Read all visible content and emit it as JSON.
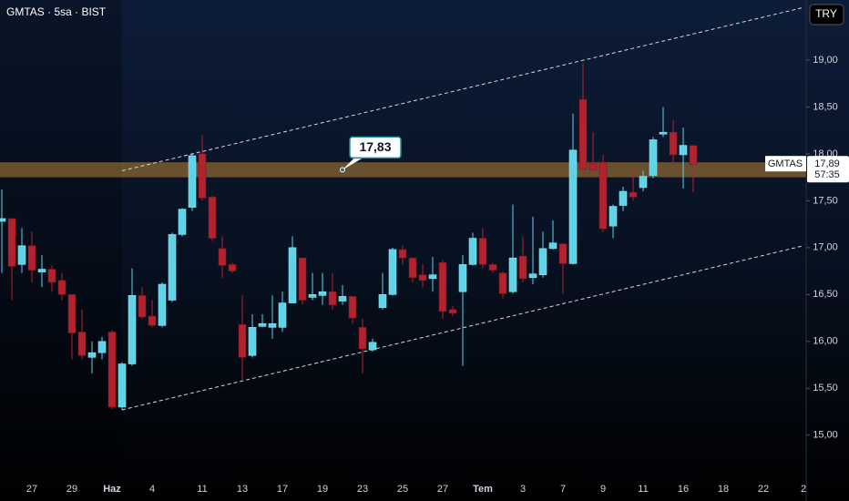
{
  "chart_data": {
    "type": "candlestick",
    "title": "GMTAS · 5sa · BIST",
    "currency": "TRY",
    "symbol": "GMTAS",
    "categories": [
      null,
      null,
      null,
      "27",
      null,
      null,
      null,
      "29",
      null,
      null,
      null,
      "Haz",
      null,
      null,
      null,
      "4",
      null,
      null,
      null,
      null,
      "11",
      null,
      null,
      null,
      "13",
      null,
      null,
      null,
      "17",
      null,
      null,
      null,
      "19",
      null,
      null,
      null,
      "23",
      null,
      null,
      null,
      "25",
      null,
      null,
      null,
      "27",
      null,
      null,
      null,
      "Tem",
      null,
      null,
      null,
      "3",
      null,
      null,
      null,
      "7",
      null,
      null,
      null,
      "9",
      null,
      null,
      null,
      "11",
      null,
      null,
      null,
      "16",
      null,
      null,
      null,
      "18",
      null,
      null,
      null,
      "22",
      null,
      null,
      null,
      "2"
    ],
    "open": [
      17.28,
      17.31,
      16.82,
      17.02,
      16.74,
      16.77,
      16.65,
      16.5,
      16.1,
      15.83,
      15.88,
      16.1,
      15.3,
      15.76,
      16.49,
      16.27,
      16.17,
      16.44,
      17.14,
      17.43,
      18.0,
      17.54,
      16.99,
      16.82,
      16.18,
      15.85,
      16.16,
      16.15,
      16.15,
      16.41,
      16.89,
      16.47,
      16.49,
      16.53,
      16.43,
      16.48,
      16.15,
      15.91,
      16.36,
      16.5,
      16.98,
      16.89,
      16.71,
      16.67,
      16.84,
      16.34,
      16.53,
      16.82,
      17.1,
      16.82,
      16.73,
      16.53,
      16.91,
      16.68,
      16.71,
      16.99,
      17.04,
      16.83,
      18.58,
      17.9,
      17.91,
      17.23,
      17.45,
      17.59,
      17.64,
      17.77,
      18.21,
      18.23,
      17.99,
      18.09,
      null,
      null,
      null,
      null,
      null,
      null,
      null,
      null,
      null,
      null,
      null
    ],
    "high": [
      17.62,
      17.31,
      17.21,
      17.17,
      16.92,
      16.81,
      16.73,
      16.5,
      16.34,
      16.0,
      16.05,
      16.12,
      15.78,
      16.78,
      16.58,
      16.44,
      16.63,
      17.16,
      17.42,
      18.01,
      18.2,
      17.55,
      17.12,
      16.84,
      16.49,
      16.29,
      16.29,
      16.49,
      16.53,
      17.12,
      16.89,
      16.73,
      16.73,
      16.73,
      16.6,
      16.48,
      16.24,
      16.03,
      16.73,
      17.0,
      17.02,
      16.89,
      16.82,
      16.9,
      16.87,
      16.38,
      16.92,
      17.16,
      17.21,
      16.84,
      16.75,
      17.46,
      17.12,
      17.33,
      17.17,
      17.29,
      17.05,
      18.43,
      18.97,
      18.23,
      17.99,
      17.46,
      17.65,
      17.84,
      17.82,
      18.18,
      18.5,
      18.36,
      18.28,
      18.09,
      null,
      null,
      null,
      null,
      null,
      null,
      null,
      null,
      null,
      null,
      null
    ],
    "low": [
      16.73,
      16.44,
      16.73,
      16.63,
      16.58,
      16.53,
      16.44,
      15.81,
      15.81,
      15.66,
      15.81,
      15.28,
      15.27,
      15.74,
      16.24,
      16.15,
      16.15,
      16.42,
      17.12,
      17.39,
      17.5,
      17.07,
      16.68,
      16.73,
      15.58,
      15.83,
      16.15,
      16.03,
      16.1,
      16.41,
      16.39,
      16.44,
      16.39,
      16.34,
      16.39,
      16.19,
      15.66,
      15.89,
      16.34,
      16.49,
      16.82,
      16.63,
      16.58,
      16.53,
      16.24,
      16.27,
      15.74,
      16.81,
      16.78,
      16.73,
      16.46,
      16.51,
      16.63,
      16.61,
      16.68,
      16.98,
      16.51,
      16.82,
      17.8,
      17.8,
      17.17,
      17.1,
      17.39,
      17.5,
      17.6,
      17.74,
      18.18,
      17.89,
      17.63,
      17.59,
      null,
      null,
      null,
      null,
      null,
      null,
      null,
      null,
      null,
      null,
      null
    ],
    "close": [
      17.31,
      16.8,
      17.02,
      16.76,
      16.77,
      16.63,
      16.5,
      16.09,
      15.85,
      15.88,
      16.0,
      15.3,
      15.76,
      16.49,
      16.26,
      16.17,
      16.61,
      17.14,
      17.41,
      17.98,
      17.53,
      17.1,
      16.81,
      16.75,
      15.83,
      16.15,
      16.19,
      16.19,
      16.41,
      17.0,
      16.44,
      16.5,
      16.53,
      16.39,
      16.48,
      16.25,
      15.92,
      15.99,
      16.5,
      16.98,
      16.89,
      16.68,
      16.65,
      16.71,
      16.32,
      16.3,
      16.82,
      17.1,
      16.82,
      16.76,
      16.51,
      16.89,
      16.67,
      16.72,
      16.99,
      17.05,
      16.83,
      18.04,
      17.84,
      17.83,
      17.2,
      17.44,
      17.6,
      17.54,
      17.76,
      18.15,
      18.23,
      17.99,
      18.09,
      17.89,
      null,
      null,
      null,
      null,
      null,
      null,
      null,
      null,
      null,
      null,
      null
    ],
    "up_color": "#5fd3e8",
    "down_color": "#b3222f",
    "ylim": [
      14.59,
      19.64
    ],
    "yticks": [
      {
        "value": 15,
        "label": "15,00"
      },
      {
        "value": 15.5,
        "label": "15,50"
      },
      {
        "value": 16,
        "label": "16,00"
      },
      {
        "value": 16.5,
        "label": "16,50"
      },
      {
        "value": 17,
        "label": "17,00"
      },
      {
        "value": 17.5,
        "label": "17,50"
      },
      {
        "value": 18,
        "label": "18,00"
      },
      {
        "value": 18.5,
        "label": "18,50"
      },
      {
        "value": 19,
        "label": "19,00"
      }
    ],
    "zone": {
      "values": [
        17.75,
        17.91
      ],
      "color": "#8a6632"
    },
    "channel": [
      {
        "x": [
          12,
          80
        ],
        "values": [
          17.82,
          19.56
        ]
      },
      {
        "x": [
          12,
          80
        ],
        "values": [
          15.27,
          17.02
        ]
      }
    ],
    "callout": {
      "x": 34,
      "value": 17.83,
      "label": "17,83"
    },
    "last_price": {
      "value": 17.89,
      "label": "17,89"
    },
    "countdown": "57:35"
  }
}
